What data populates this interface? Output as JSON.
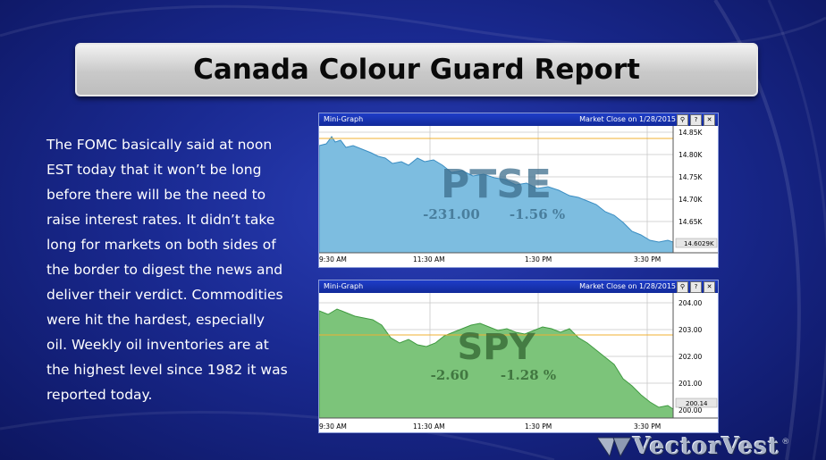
{
  "title": "Canada Colour Guard Report",
  "body_text": "The FOMC basically said at noon EST today that it won’t be long before there will be the need to raise interest rates. It didn’t take long for markets on both sides of the border to digest the news and deliver their verdict. Commodities were hit the hardest, especially oil. Weekly oil inventories are at the highest level since 1982 it was reported today.",
  "logo": {
    "text": "VectorVest",
    "mark": "®"
  },
  "charts": [
    {
      "header_title": "Mini-Graph",
      "market_close": "Market Close on 1/28/2015",
      "symbol": "PTSE",
      "change": "-231.00",
      "change_pct": "-1.56 %",
      "last_label": "14.6029K",
      "y_ticks": [
        "14.85K",
        "14.80K",
        "14.75K",
        "14.70K",
        "14.65K"
      ],
      "x_ticks": [
        "9:30 AM",
        "11:30 AM",
        "1:30 PM",
        "3:30 PM"
      ],
      "fill_color": "#7dbde0",
      "line_color": "#3a8dc2"
    },
    {
      "header_title": "Mini-Graph",
      "market_close": "Market Close on 1/28/2015",
      "symbol": "SPY",
      "change": "-2.60",
      "change_pct": "-1.28 %",
      "last_label": "200.14",
      "y_ticks": [
        "204.00",
        "203.00",
        "202.00",
        "201.00",
        "200.00"
      ],
      "x_ticks": [
        "9:30 AM",
        "11:30 AM",
        "1:30 PM",
        "3:30 PM"
      ],
      "fill_color": "#7cc47a",
      "line_color": "#3f9a40"
    }
  ],
  "header_buttons": [
    "search-icon",
    "help-icon",
    "close-icon"
  ]
}
